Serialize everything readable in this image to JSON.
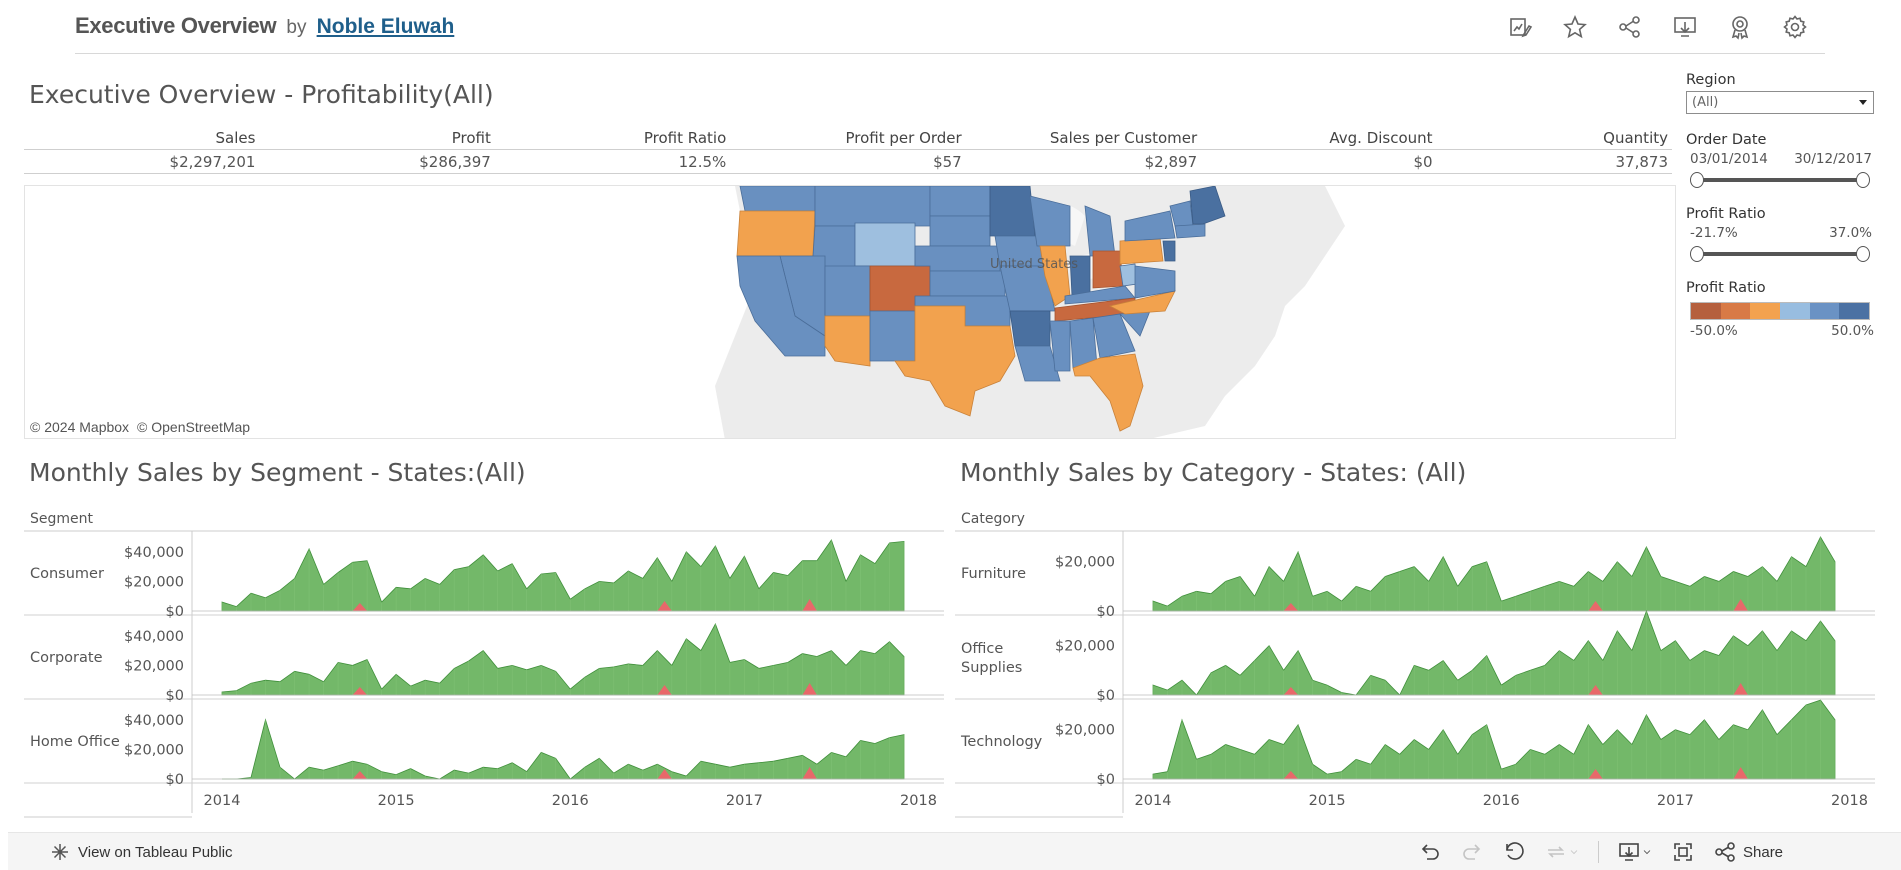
{
  "header": {
    "title": "Executive Overview",
    "by": "by",
    "author": "Noble Eluwah",
    "icons": [
      "edit-icon",
      "favorite-star-icon",
      "share-network-icon",
      "download-icon",
      "badge-icon",
      "settings-gear-icon"
    ]
  },
  "dashboard": {
    "title": "Executive Overview - Profitability(All)"
  },
  "kpis": {
    "headers": [
      "Sales",
      "Profit",
      "Profit Ratio",
      "Profit per Order",
      "Sales per Customer",
      "Avg. Discount",
      "Quantity"
    ],
    "values": [
      "$2,297,201",
      "$286,397",
      "12.5%",
      "$57",
      "$2,897",
      "$0",
      "37,873"
    ]
  },
  "map": {
    "credits": [
      "© 2024 Mapbox",
      "© OpenStreetMap"
    ],
    "country_label": "United States",
    "colors": {
      "darkest_orange": "#c8693f",
      "mid_orange": "#db7e45",
      "light_orange": "#f2a24e",
      "lightest_blue": "#9ebfdf",
      "mid_blue": "#6990c0",
      "dark_blue": "#4a70a0",
      "land": "#ececec"
    }
  },
  "filters": {
    "region": {
      "label": "Region",
      "value": "(All)"
    },
    "order_date": {
      "label": "Order Date",
      "min": "03/01/2014",
      "max": "30/12/2017"
    },
    "profit_ratio": {
      "label": "Profit Ratio",
      "min": "-21.7%",
      "max": "37.0%"
    },
    "profit_legend": {
      "label": "Profit Ratio",
      "min": "-50.0%",
      "max": "50.0%",
      "colors": [
        "#b5603e",
        "#d87a46",
        "#f3a24f",
        "#98bde0",
        "#6a92c4",
        "#4b71a3"
      ]
    }
  },
  "segment_chart": {
    "title": "Monthly Sales by Segment - States:(All)",
    "dim_label": "Segment",
    "rows": [
      "Consumer",
      "Corporate",
      "Home Office"
    ],
    "y_ticks": [
      "$40,000",
      "$20,000",
      "$0"
    ],
    "x_ticks": [
      "2014",
      "2015",
      "2016",
      "2017",
      "2018"
    ]
  },
  "category_chart": {
    "title": "Monthly Sales by Category - States: (All)",
    "dim_label": "Category",
    "rows": [
      "Furniture",
      "Office Supplies",
      "Technology"
    ],
    "y_ticks": [
      "$20,000",
      "$0"
    ],
    "x_ticks": [
      "2014",
      "2015",
      "2016",
      "2017",
      "2018"
    ]
  },
  "chart_data": [
    {
      "type": "area",
      "title": "Monthly Sales by Segment - States:(All)",
      "x": "monthly 2014-01 .. 2017-12",
      "xticks": [
        "2014",
        "2015",
        "2016",
        "2017",
        "2018"
      ],
      "ylim": [
        0,
        50000
      ],
      "colors": {
        "positive": "#5aab4f",
        "negative": "#e8686a"
      },
      "series": [
        {
          "name": "Consumer",
          "values": [
            6000,
            3000,
            12000,
            9000,
            14000,
            22000,
            42000,
            18000,
            26000,
            33000,
            34000,
            6000,
            16000,
            15000,
            22000,
            18000,
            28000,
            30000,
            38000,
            27000,
            32000,
            15000,
            25000,
            26000,
            8000,
            15000,
            20000,
            19000,
            27000,
            22000,
            36000,
            20000,
            40000,
            30000,
            44000,
            22000,
            37000,
            15000,
            26000,
            24000,
            34000,
            34000,
            48000,
            20000,
            38000,
            32000,
            46000,
            47000
          ]
        },
        {
          "name": "Corporate",
          "values": [
            2000,
            3000,
            8000,
            10000,
            9000,
            16000,
            14000,
            9000,
            22000,
            20000,
            24000,
            4000,
            14000,
            6000,
            10000,
            8000,
            18000,
            23000,
            30000,
            18000,
            20000,
            17000,
            20000,
            16000,
            4000,
            12000,
            18000,
            19000,
            21000,
            20000,
            30000,
            20000,
            38000,
            30000,
            48000,
            22000,
            24000,
            18000,
            20000,
            22000,
            28000,
            26000,
            30000,
            20000,
            30000,
            28000,
            36000,
            26000
          ]
        },
        {
          "name": "Home Office",
          "values": [
            0,
            0,
            1000,
            40000,
            8000,
            0,
            8000,
            6000,
            9000,
            12000,
            10000,
            5000,
            3000,
            7000,
            2000,
            0,
            6000,
            4000,
            8000,
            7000,
            11000,
            5000,
            18000,
            14000,
            0,
            8000,
            14000,
            4000,
            10000,
            6000,
            10000,
            5000,
            2000,
            12000,
            10000,
            8000,
            10000,
            11000,
            12000,
            14000,
            16000,
            10000,
            18000,
            15000,
            26000,
            24000,
            28000,
            30000
          ]
        }
      ]
    },
    {
      "type": "area",
      "title": "Monthly Sales by Category - States: (All)",
      "x": "monthly 2014-01 .. 2017-12",
      "xticks": [
        "2014",
        "2015",
        "2016",
        "2017",
        "2018"
      ],
      "ylim": [
        0,
        30000
      ],
      "colors": {
        "positive": "#5aab4f",
        "negative": "#e8686a"
      },
      "series": [
        {
          "name": "Furniture",
          "values": [
            4000,
            2000,
            6000,
            8000,
            7000,
            12000,
            14000,
            6000,
            18000,
            12000,
            24000,
            6000,
            8000,
            4000,
            10000,
            8000,
            14000,
            16000,
            18000,
            12000,
            22000,
            10000,
            18000,
            20000,
            4000,
            6000,
            8000,
            10000,
            12000,
            10000,
            16000,
            12000,
            20000,
            14000,
            26000,
            14000,
            12000,
            10000,
            14000,
            12000,
            16000,
            14000,
            18000,
            12000,
            22000,
            18000,
            30000,
            20000
          ]
        },
        {
          "name": "Office Supplies",
          "values": [
            4000,
            2000,
            6000,
            0,
            9000,
            12000,
            8000,
            14000,
            20000,
            10000,
            18000,
            6000,
            4000,
            1000,
            0,
            8000,
            6000,
            0,
            12000,
            10000,
            14000,
            6000,
            10000,
            16000,
            4000,
            8000,
            10000,
            12000,
            18000,
            14000,
            22000,
            14000,
            26000,
            18000,
            34000,
            18000,
            22000,
            14000,
            18000,
            16000,
            24000,
            20000,
            26000,
            18000,
            26000,
            22000,
            30000,
            22000
          ]
        },
        {
          "name": "Technology",
          "values": [
            2000,
            3000,
            24000,
            8000,
            10000,
            14000,
            12000,
            10000,
            16000,
            14000,
            22000,
            6000,
            2000,
            3000,
            8000,
            6000,
            14000,
            10000,
            16000,
            12000,
            20000,
            10000,
            18000,
            22000,
            4000,
            6000,
            12000,
            10000,
            14000,
            10000,
            22000,
            14000,
            20000,
            14000,
            26000,
            16000,
            20000,
            18000,
            24000,
            16000,
            22000,
            20000,
            28000,
            18000,
            24000,
            30000,
            32000,
            24000
          ]
        }
      ]
    }
  ],
  "toolbar": {
    "view_label": "View on Tableau Public",
    "share_label": "Share",
    "icons": [
      "undo-icon",
      "redo-icon",
      "revert-icon",
      "refresh-icon",
      "download-menu-icon",
      "fullscreen-icon",
      "share-icon"
    ]
  }
}
